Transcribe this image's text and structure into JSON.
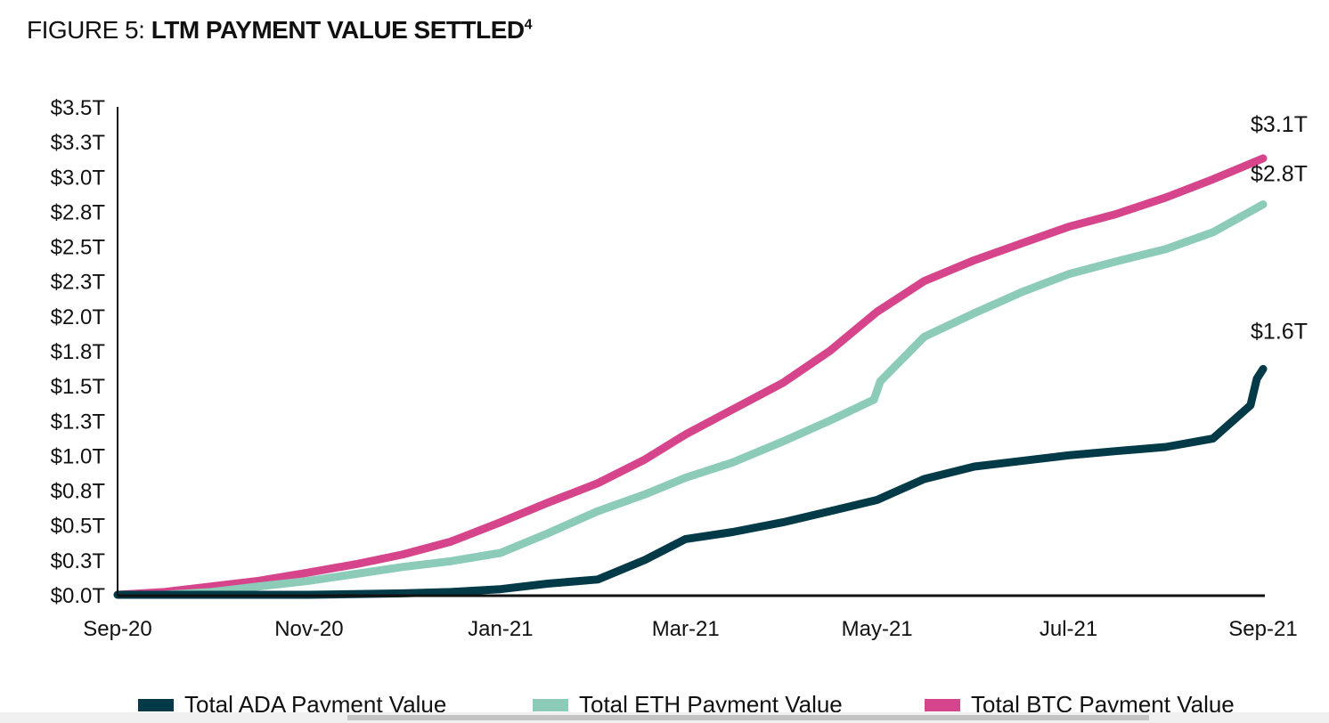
{
  "title": {
    "prefix": "FIGURE 5: ",
    "main": "LTM PAYMENT VALUE SETTLED",
    "footnote": "4"
  },
  "chart_data": {
    "type": "line",
    "title": "FIGURE 5: LTM PAYMENT VALUE SETTLED",
    "xlabel": "",
    "ylabel": "",
    "xlim": [
      "2020-09-01",
      "2021-09-01"
    ],
    "ylim": [
      0,
      3.5
    ],
    "y_unit": "trillion USD",
    "x_ticks": [
      {
        "date": "2020-09-01",
        "label": "Sep-20"
      },
      {
        "date": "2020-11-01",
        "label": "Nov-20"
      },
      {
        "date": "2021-01-01",
        "label": "Jan-21"
      },
      {
        "date": "2021-03-01",
        "label": "Mar-21"
      },
      {
        "date": "2021-05-01",
        "label": "May-21"
      },
      {
        "date": "2021-07-01",
        "label": "Jul-21"
      },
      {
        "date": "2021-09-01",
        "label": "Sep-21"
      }
    ],
    "y_ticks": [
      {
        "value": 0,
        "label": "$0.0T"
      },
      {
        "value": 0.25,
        "label": "$0.3T"
      },
      {
        "value": 0.5,
        "label": "$0.5T"
      },
      {
        "value": 0.75,
        "label": "$0.8T"
      },
      {
        "value": 1.0,
        "label": "$1.0T"
      },
      {
        "value": 1.25,
        "label": "$1.3T"
      },
      {
        "value": 1.5,
        "label": "$1.5T"
      },
      {
        "value": 1.75,
        "label": "$1.8T"
      },
      {
        "value": 2.0,
        "label": "$2.0T"
      },
      {
        "value": 2.25,
        "label": "$2.3T"
      },
      {
        "value": 2.5,
        "label": "$2.5T"
      },
      {
        "value": 2.75,
        "label": "$2.8T"
      },
      {
        "value": 3.0,
        "label": "$3.0T"
      },
      {
        "value": 3.25,
        "label": "$3.3T"
      },
      {
        "value": 3.5,
        "label": "$3.5T"
      }
    ],
    "grid": false,
    "legend_position": "bottom",
    "series": [
      {
        "name": "Total ADA Payment Value",
        "color": "#033a47",
        "end_label": "$1.6T",
        "points": [
          [
            "2020-09-01",
            0
          ],
          [
            "2020-10-01",
            0
          ],
          [
            "2020-11-01",
            0
          ],
          [
            "2020-12-01",
            0.01
          ],
          [
            "2020-12-16",
            0.02
          ],
          [
            "2021-01-01",
            0.04
          ],
          [
            "2021-01-16",
            0.08
          ],
          [
            "2021-02-01",
            0.11
          ],
          [
            "2021-02-16",
            0.25
          ],
          [
            "2021-03-01",
            0.4
          ],
          [
            "2021-03-16",
            0.45
          ],
          [
            "2021-04-01",
            0.52
          ],
          [
            "2021-04-16",
            0.6
          ],
          [
            "2021-05-01",
            0.68
          ],
          [
            "2021-05-16",
            0.83
          ],
          [
            "2021-06-01",
            0.92
          ],
          [
            "2021-06-16",
            0.96
          ],
          [
            "2021-07-01",
            1.0
          ],
          [
            "2021-07-16",
            1.03
          ],
          [
            "2021-08-01",
            1.06
          ],
          [
            "2021-08-16",
            1.12
          ],
          [
            "2021-08-24",
            1.28
          ],
          [
            "2021-08-28",
            1.36
          ],
          [
            "2021-08-30",
            1.55
          ],
          [
            "2021-09-01",
            1.62
          ]
        ]
      },
      {
        "name": "Total ETH Payment Value",
        "color": "#8ccbb8",
        "end_label": "$2.8T",
        "points": [
          [
            "2020-09-01",
            0
          ],
          [
            "2020-09-16",
            0
          ],
          [
            "2020-10-01",
            0.02
          ],
          [
            "2020-10-16",
            0.06
          ],
          [
            "2020-11-01",
            0.1
          ],
          [
            "2020-11-16",
            0.15
          ],
          [
            "2020-12-01",
            0.2
          ],
          [
            "2020-12-16",
            0.24
          ],
          [
            "2021-01-01",
            0.3
          ],
          [
            "2021-01-16",
            0.44
          ],
          [
            "2021-02-01",
            0.6
          ],
          [
            "2021-02-16",
            0.72
          ],
          [
            "2021-03-01",
            0.84
          ],
          [
            "2021-03-16",
            0.95
          ],
          [
            "2021-04-01",
            1.1
          ],
          [
            "2021-04-16",
            1.25
          ],
          [
            "2021-04-30",
            1.4
          ],
          [
            "2021-05-02",
            1.53
          ],
          [
            "2021-05-16",
            1.85
          ],
          [
            "2021-06-01",
            2.02
          ],
          [
            "2021-06-16",
            2.17
          ],
          [
            "2021-07-01",
            2.3
          ],
          [
            "2021-07-16",
            2.39
          ],
          [
            "2021-08-01",
            2.48
          ],
          [
            "2021-08-16",
            2.6
          ],
          [
            "2021-09-01",
            2.8
          ]
        ]
      },
      {
        "name": "Total BTC Payment Value",
        "color": "#d6458b",
        "end_label": "$3.1T",
        "points": [
          [
            "2020-09-01",
            0
          ],
          [
            "2020-09-16",
            0.02
          ],
          [
            "2020-10-01",
            0.06
          ],
          [
            "2020-10-16",
            0.1
          ],
          [
            "2020-11-01",
            0.16
          ],
          [
            "2020-11-16",
            0.22
          ],
          [
            "2020-12-01",
            0.29
          ],
          [
            "2020-12-16",
            0.38
          ],
          [
            "2021-01-01",
            0.52
          ],
          [
            "2021-01-16",
            0.66
          ],
          [
            "2021-02-01",
            0.8
          ],
          [
            "2021-02-16",
            0.97
          ],
          [
            "2021-03-01",
            1.15
          ],
          [
            "2021-03-16",
            1.33
          ],
          [
            "2021-04-01",
            1.52
          ],
          [
            "2021-04-16",
            1.75
          ],
          [
            "2021-05-01",
            2.03
          ],
          [
            "2021-05-16",
            2.25
          ],
          [
            "2021-06-01",
            2.4
          ],
          [
            "2021-06-16",
            2.52
          ],
          [
            "2021-07-01",
            2.64
          ],
          [
            "2021-07-16",
            2.73
          ],
          [
            "2021-08-01",
            2.85
          ],
          [
            "2021-08-16",
            2.98
          ],
          [
            "2021-09-01",
            3.13
          ]
        ]
      }
    ]
  }
}
